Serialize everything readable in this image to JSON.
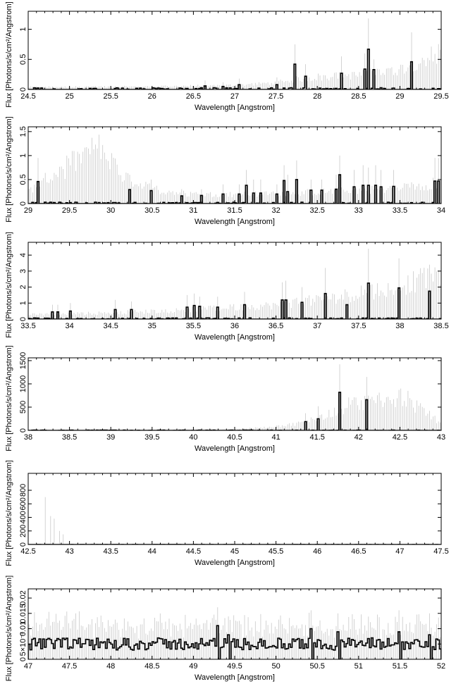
{
  "chart_data": [
    {
      "type": "line",
      "xlabel": "Wavelength [Angstrom]",
      "ylabel": "Flux [Photons/s/cm²/Angstrom]",
      "xlim": [
        24.5,
        29.5
      ],
      "ylim": [
        0,
        1.3
      ],
      "xticks": [
        "24.5",
        "25",
        "25.5",
        "26",
        "26.5",
        "27",
        "27.5",
        "28",
        "28.5",
        "29",
        "29.5"
      ],
      "yticks": [
        "0",
        "0.5",
        "1"
      ],
      "error_upper": [
        [
          24.5,
          0.05
        ],
        [
          26.0,
          0.06
        ],
        [
          27.0,
          0.09
        ],
        [
          27.5,
          0.14
        ],
        [
          27.7,
          0.2
        ],
        [
          28.0,
          0.26
        ],
        [
          28.5,
          0.3
        ],
        [
          29.0,
          0.42
        ],
        [
          29.5,
          0.8
        ]
      ],
      "peaks": [
        [
          27.72,
          0.42,
          0.75
        ],
        [
          27.85,
          0.22,
          0.42
        ],
        [
          28.3,
          0.27,
          0.55
        ],
        [
          28.57,
          0.34,
          0.6
        ],
        [
          28.63,
          0.67,
          1.18
        ],
        [
          28.68,
          0.33,
          0.5
        ],
        [
          29.15,
          0.46,
          0.95
        ],
        [
          26.65,
          0.06,
          0.15
        ],
        [
          26.85,
          0.05,
          0.12
        ],
        [
          27.05,
          0.08,
          0.18
        ],
        [
          27.5,
          0.08,
          0.2
        ]
      ],
      "baseline": 0.02
    },
    {
      "type": "line",
      "xlabel": "Wavelength [Angstrom]",
      "ylabel": "Flux [Photons/s/cm²/Angstrom]",
      "xlim": [
        29.0,
        34.0
      ],
      "ylim": [
        0,
        1.6
      ],
      "xticks": [
        "29",
        "29.5",
        "30",
        "30.5",
        "31",
        "31.5",
        "32",
        "32.5",
        "33",
        "33.5",
        "34"
      ],
      "yticks": [
        "0",
        "0.5",
        "1",
        "1.5"
      ],
      "error_upper": [
        [
          29.0,
          0.3
        ],
        [
          29.2,
          0.6
        ],
        [
          29.5,
          1.0
        ],
        [
          29.7,
          1.3
        ],
        [
          29.85,
          1.45
        ],
        [
          29.95,
          1.2
        ],
        [
          30.1,
          0.8
        ],
        [
          30.4,
          0.45
        ],
        [
          30.7,
          0.3
        ],
        [
          31.0,
          0.24
        ],
        [
          31.5,
          0.24
        ],
        [
          32.0,
          0.27
        ],
        [
          32.5,
          0.3
        ],
        [
          33.0,
          0.35
        ],
        [
          33.5,
          0.4
        ],
        [
          34.0,
          0.55
        ]
      ],
      "peaks": [
        [
          29.13,
          0.46,
          0.95
        ],
        [
          30.22,
          0.29,
          0.6
        ],
        [
          30.48,
          0.27,
          0.5
        ],
        [
          30.85,
          0.16,
          0.3
        ],
        [
          31.1,
          0.17,
          0.3
        ],
        [
          31.35,
          0.2,
          0.4
        ],
        [
          31.55,
          0.2,
          0.4
        ],
        [
          31.65,
          0.38,
          0.7
        ],
        [
          31.73,
          0.22,
          0.5
        ],
        [
          31.82,
          0.22,
          0.5
        ],
        [
          32.0,
          0.2,
          0.4
        ],
        [
          32.1,
          0.48,
          0.8
        ],
        [
          32.15,
          0.25,
          0.6
        ],
        [
          32.25,
          0.5,
          0.9
        ],
        [
          32.42,
          0.28,
          0.5
        ],
        [
          32.55,
          0.28,
          0.5
        ],
        [
          32.72,
          0.3,
          0.6
        ],
        [
          32.78,
          0.6,
          1.0
        ],
        [
          32.95,
          0.35,
          0.7
        ],
        [
          33.06,
          0.38,
          0.8
        ],
        [
          33.12,
          0.38,
          0.75
        ],
        [
          33.2,
          0.38,
          0.8
        ],
        [
          33.28,
          0.35,
          0.7
        ],
        [
          33.42,
          0.36,
          0.7
        ],
        [
          33.92,
          0.47,
          0.95
        ],
        [
          33.97,
          0.47,
          0.95
        ]
      ],
      "baseline": 0.02
    },
    {
      "type": "line",
      "xlabel": "Wavelength [Angstrom]",
      "ylabel": "Flux [Photons/s/cm²/Angstrom]",
      "xlim": [
        33.5,
        38.5
      ],
      "ylim": [
        0,
        4.8
      ],
      "xticks": [
        "33.5",
        "34",
        "34.5",
        "35",
        "35.5",
        "36",
        "36.5",
        "37",
        "37.5",
        "38",
        "38.5"
      ],
      "yticks": [
        "0",
        "1",
        "2",
        "3",
        "4"
      ],
      "error_upper": [
        [
          33.5,
          0.35
        ],
        [
          34.0,
          0.4
        ],
        [
          34.5,
          0.5
        ],
        [
          35.0,
          0.6
        ],
        [
          35.5,
          0.75
        ],
        [
          36.0,
          0.9
        ],
        [
          36.5,
          1.1
        ],
        [
          37.0,
          1.5
        ],
        [
          37.5,
          2.0
        ],
        [
          38.0,
          2.6
        ],
        [
          38.5,
          3.5
        ]
      ],
      "peaks": [
        [
          33.8,
          0.45,
          0.9
        ],
        [
          33.85,
          0.45,
          0.9
        ],
        [
          34.0,
          0.5,
          1.0
        ],
        [
          34.55,
          0.6,
          1.2
        ],
        [
          34.75,
          0.6,
          1.1
        ],
        [
          35.42,
          0.75,
          1.5
        ],
        [
          35.52,
          0.85,
          1.6
        ],
        [
          35.58,
          0.8,
          1.4
        ],
        [
          35.8,
          0.75,
          1.4
        ],
        [
          36.12,
          0.9,
          1.7
        ],
        [
          36.58,
          1.2,
          2.3
        ],
        [
          36.62,
          1.2,
          2.4
        ],
        [
          36.82,
          1.05,
          2.0
        ],
        [
          37.1,
          1.6,
          3.2
        ],
        [
          37.35,
          0.9,
          1.7
        ],
        [
          37.62,
          2.25,
          4.4
        ],
        [
          37.98,
          1.95,
          3.8
        ],
        [
          38.35,
          1.75,
          3.4
        ]
      ],
      "baseline": 0.05
    },
    {
      "type": "line",
      "xlabel": "Wavelength [Angstrom]",
      "ylabel": "Flux [Photons/s/cm²/Angstrom]",
      "xlim": [
        38.0,
        43.0
      ],
      "ylim": [
        0,
        1560
      ],
      "xticks": [
        "38",
        "38.5",
        "39",
        "39.5",
        "40",
        "40.5",
        "41",
        "41.5",
        "42",
        "42.5",
        "43"
      ],
      "yticks": [
        "0",
        "500",
        "1000",
        "1500"
      ],
      "error_upper": [
        [
          38.0,
          8
        ],
        [
          40.0,
          15
        ],
        [
          40.5,
          30
        ],
        [
          41.0,
          100
        ],
        [
          41.3,
          200
        ],
        [
          41.6,
          400
        ],
        [
          41.9,
          700
        ],
        [
          42.2,
          850
        ],
        [
          42.5,
          920
        ],
        [
          42.8,
          500
        ],
        [
          43.0,
          200
        ]
      ],
      "peaks": [
        [
          41.35,
          190,
          370
        ],
        [
          41.52,
          250,
          520
        ],
        [
          41.78,
          820,
          1420
        ],
        [
          42.1,
          660,
          1150
        ],
        [
          42.5,
          0,
          900
        ],
        [
          42.6,
          0,
          850
        ],
        [
          42.85,
          0,
          420
        ],
        [
          42.9,
          0,
          300
        ]
      ],
      "baseline": 5
    },
    {
      "type": "line",
      "xlabel": "Wavelength [Angstrom]",
      "ylabel": "Flux [Photons/s/cm²/Angstrom]",
      "xlim": [
        42.5,
        47.5
      ],
      "ylim": [
        0,
        1050
      ],
      "xticks": [
        "42.5",
        "43",
        "43.5",
        "44",
        "44.5",
        "45",
        "45.5",
        "46",
        "46.5",
        "47",
        "47.5"
      ],
      "yticks": [
        "0",
        "200",
        "400",
        "600",
        "800"
      ],
      "error_upper": [
        [
          42.5,
          0
        ],
        [
          47.5,
          0
        ]
      ],
      "peaks": [
        [
          42.7,
          0,
          700
        ],
        [
          42.78,
          0,
          420
        ],
        [
          42.82,
          0,
          380
        ],
        [
          42.88,
          0,
          200
        ],
        [
          42.92,
          0,
          150
        ]
      ],
      "baseline": 1
    },
    {
      "type": "line",
      "xlabel": "Wavelength [Angstrom]",
      "ylabel": "Flux [Photons/s/cm²/Angstrom]",
      "xlim": [
        47.0,
        52.0
      ],
      "ylim": [
        0,
        0.023
      ],
      "xticks": [
        "47",
        "47.5",
        "48",
        "48.5",
        "49",
        "49.5",
        "50",
        "50.5",
        "51",
        "51.5",
        "52"
      ],
      "yticks": [
        "0",
        "5×10⁻³",
        "0.01",
        "0.015",
        "0.02"
      ],
      "error_upper": [
        [
          47.0,
          0.013
        ],
        [
          52.0,
          0.013
        ]
      ],
      "peaks": [
        [
          49.3,
          0.011,
          0.017
        ],
        [
          50.42,
          0.01,
          0.016
        ],
        [
          50.75,
          0.009,
          0.015
        ],
        [
          51.48,
          0.009,
          0.016
        ],
        [
          51.85,
          0.008,
          0.015
        ],
        [
          49.42,
          0.008,
          0.014
        ]
      ],
      "noise": true,
      "baseline": 0.005
    }
  ]
}
